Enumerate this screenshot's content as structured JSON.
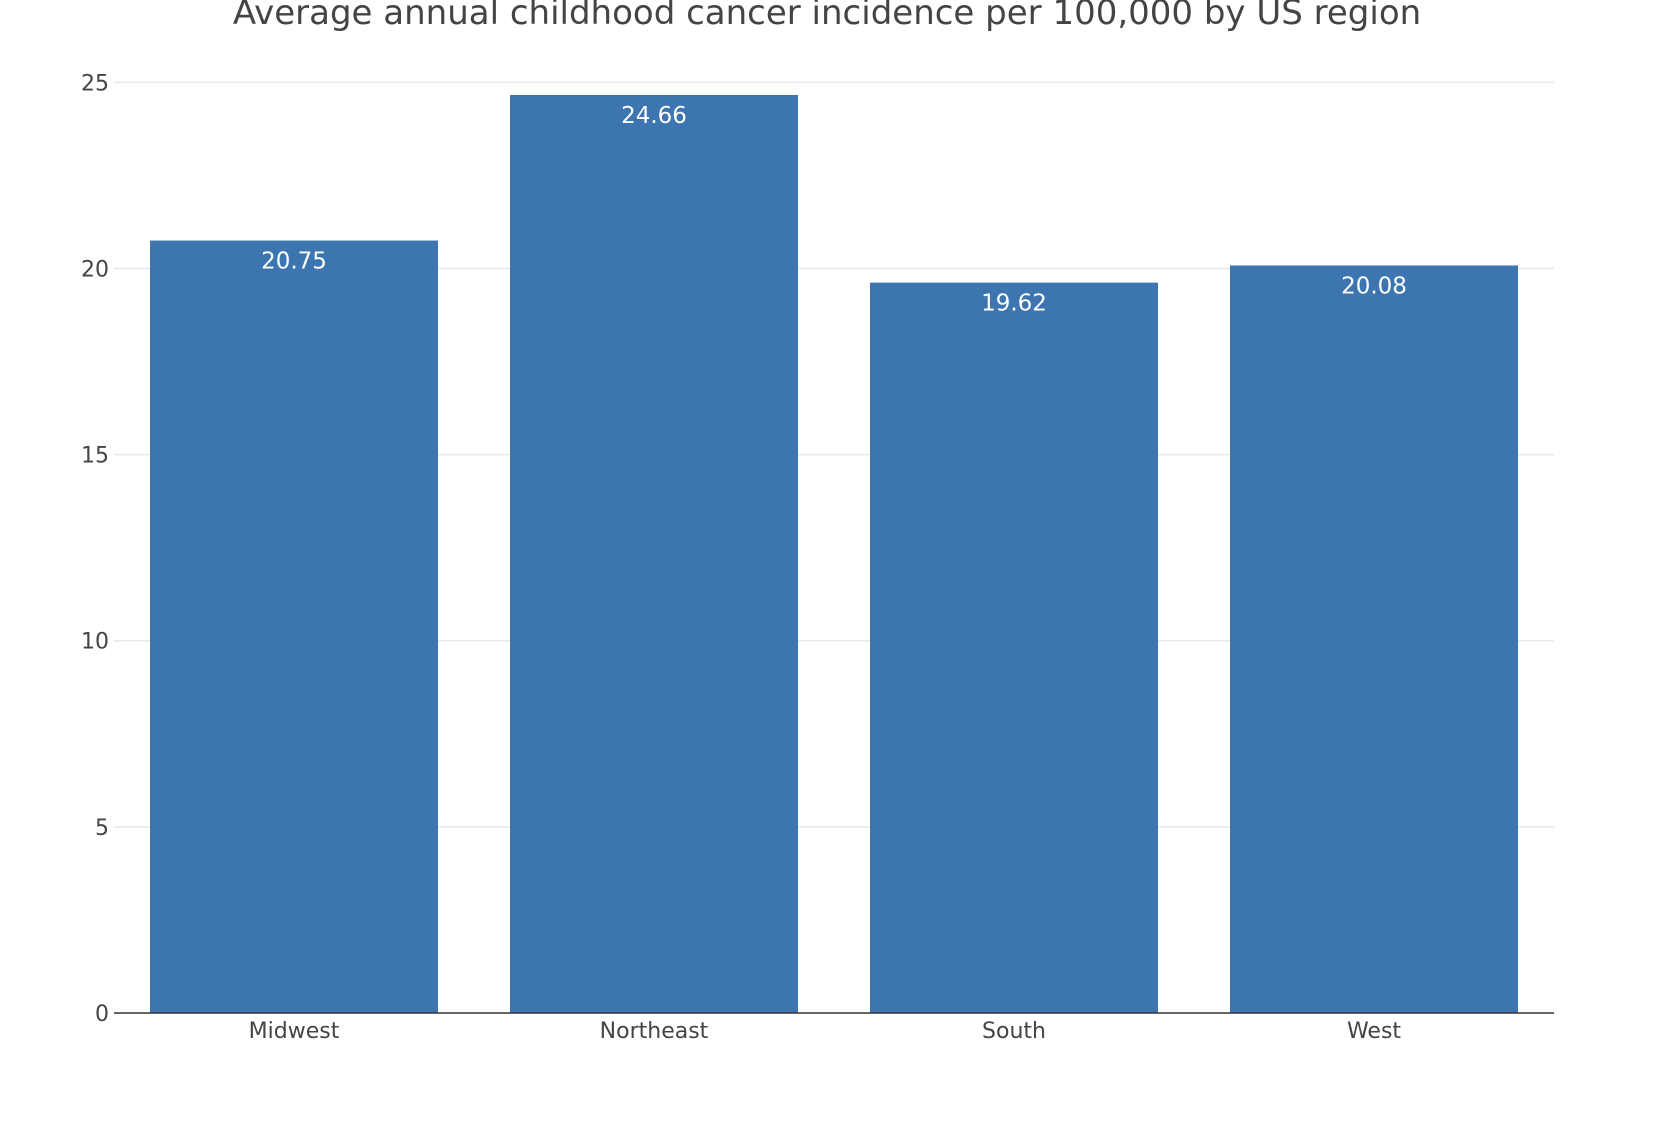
{
  "chart_data": {
    "type": "bar",
    "title": "Average annual childhood cancer incidence per 100,000 by US region",
    "xlabel": "",
    "ylabel": "",
    "categories": [
      "Midwest",
      "Northeast",
      "South",
      "West"
    ],
    "values": [
      20.75,
      24.66,
      19.62,
      20.08
    ],
    "data_labels": [
      "20.75",
      "24.66",
      "19.62",
      "20.08"
    ],
    "ylim": [
      0,
      25.6
    ],
    "yticks": [
      0,
      5,
      10,
      15,
      20,
      25
    ],
    "ytick_labels": [
      "0",
      "5",
      "10",
      "15",
      "20",
      "25"
    ],
    "grid": true,
    "legend": "none",
    "colors": {
      "bar": "#3c75af",
      "bar_label": "#ffffff",
      "grid": "#e6e8ec",
      "text": "#444444"
    }
  }
}
